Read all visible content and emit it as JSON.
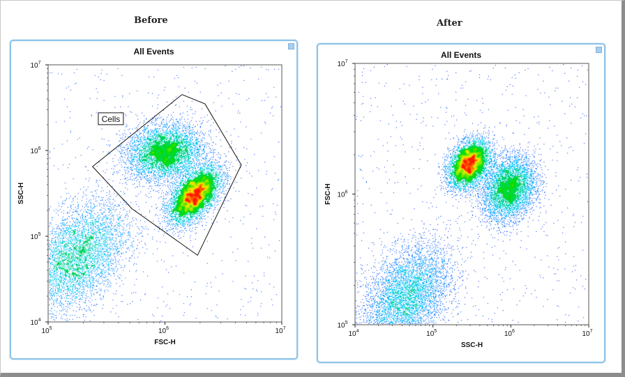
{
  "headings": {
    "before": "Before",
    "after": "After"
  },
  "colors": {
    "panel_border": "#8ec3e8",
    "density_low": "#0000ff",
    "density_mid": "#00c8ff",
    "density_midhigh": "#00dd00",
    "density_high": "#ffee00",
    "density_peak": "#ff1a00"
  },
  "chart_data": [
    {
      "type": "scatter",
      "panel": "before",
      "title": "All Events",
      "xlabel": "FSC-H",
      "ylabel": "SSC-H",
      "xscale": "log",
      "yscale": "log",
      "xlim": [
        100000,
        10000000
      ],
      "ylim": [
        10000,
        10000000
      ],
      "x_ticks": [
        {
          "value": 100000,
          "base": "10",
          "exp": "5"
        },
        {
          "value": 1000000,
          "base": "10",
          "exp": "6"
        },
        {
          "value": 10000000,
          "base": "10",
          "exp": "7"
        }
      ],
      "y_ticks": [
        {
          "value": 10000,
          "base": "10",
          "exp": "4"
        },
        {
          "value": 100000,
          "base": "10",
          "exp": "5"
        },
        {
          "value": 1000000,
          "base": "10",
          "exp": "6"
        },
        {
          "value": 10000000,
          "base": "10",
          "exp": "7"
        }
      ],
      "gate": {
        "label": "Cells",
        "label_at": [
          280000,
          2200000
        ],
        "vertices": [
          [
            240000,
            650000
          ],
          [
            1400000,
            4500000
          ],
          [
            2200000,
            3500000
          ],
          [
            4500000,
            680000
          ],
          [
            1900000,
            60000
          ],
          [
            520000,
            210000
          ]
        ]
      },
      "populations": [
        {
          "name": "",
          "x": 1800000,
          "y": 300000,
          "sx": 0.11,
          "sy": 0.16,
          "rho": 0.55,
          "n": 6500,
          "peak": 1.0
        },
        {
          "name": "",
          "x": 1000000,
          "y": 950000,
          "sx": 0.16,
          "sy": 0.16,
          "rho": 0.1,
          "n": 5200,
          "peak": 0.55
        },
        {
          "name": "",
          "x": 170000,
          "y": 55000,
          "sx": 0.22,
          "sy": 0.32,
          "rho": 0.45,
          "n": 7500,
          "peak": 0.45
        }
      ]
    },
    {
      "type": "scatter",
      "panel": "after",
      "title": "All Events",
      "xlabel": "SSC-H",
      "ylabel": "FSC-H",
      "xscale": "log",
      "yscale": "log",
      "xlim": [
        10000,
        10000000
      ],
      "ylim": [
        100000,
        10000000
      ],
      "x_ticks": [
        {
          "value": 10000,
          "base": "10",
          "exp": "4"
        },
        {
          "value": 100000,
          "base": "10",
          "exp": "5"
        },
        {
          "value": 1000000,
          "base": "10",
          "exp": "6"
        },
        {
          "value": 10000000,
          "base": "10",
          "exp": "7"
        }
      ],
      "y_ticks": [
        {
          "value": 100000,
          "base": "10",
          "exp": "5"
        },
        {
          "value": 1000000,
          "base": "10",
          "exp": "6"
        },
        {
          "value": 10000000,
          "base": "10",
          "exp": "7"
        }
      ],
      "populations": [
        {
          "name": "",
          "x": 290000,
          "y": 1700000,
          "sx": 0.13,
          "sy": 0.09,
          "rho": 0.35,
          "n": 6500,
          "peak": 1.0
        },
        {
          "name": "",
          "x": 950000,
          "y": 1100000,
          "sx": 0.17,
          "sy": 0.12,
          "rho": 0.2,
          "n": 5000,
          "peak": 0.55
        },
        {
          "name": "",
          "x": 45000,
          "y": 160000,
          "sx": 0.28,
          "sy": 0.2,
          "rho": 0.4,
          "n": 6000,
          "peak": 0.4
        }
      ]
    }
  ]
}
